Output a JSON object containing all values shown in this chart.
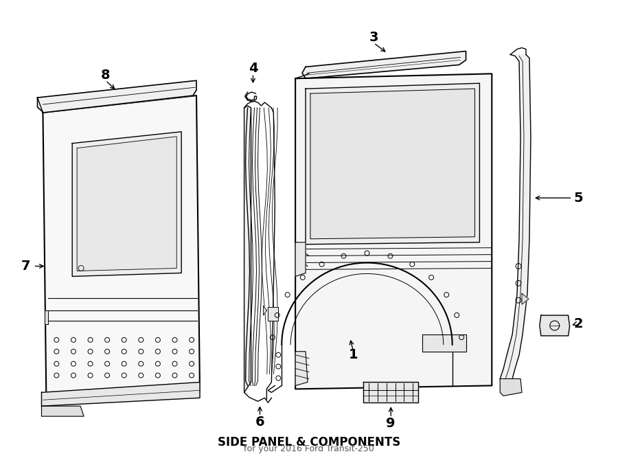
{
  "title": "SIDE PANEL & COMPONENTS",
  "subtitle": "for your 2016 Ford Transit-250",
  "background_color": "#ffffff",
  "line_color": "#000000",
  "fig_width": 9.0,
  "fig_height": 6.61,
  "dpi": 100
}
